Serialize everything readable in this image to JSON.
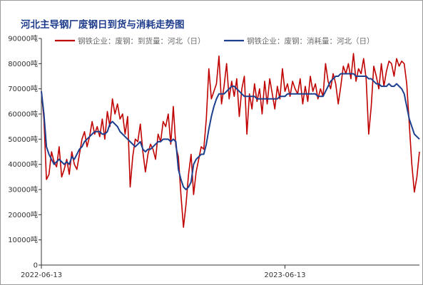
{
  "chart_data": {
    "type": "line",
    "title": "河北主导钢厂废钢日到货与消耗走势图",
    "ylim": [
      0,
      90000
    ],
    "y_unit": "吨",
    "y_ticks": [
      0,
      10000,
      20000,
      30000,
      40000,
      50000,
      60000,
      70000,
      80000,
      90000
    ],
    "y_tick_labels": [
      "0",
      "10000吨",
      "20000吨",
      "30000吨",
      "40000吨",
      "50000吨",
      "60000吨",
      "70000吨",
      "80000吨",
      "90000吨"
    ],
    "x_tick_labels": [
      "2022-06-13",
      "2023-06-13"
    ],
    "x_tick_index": [
      0,
      96
    ],
    "legend_position": "top",
    "grid": false,
    "series": [
      {
        "name": "钢铁企业：废钢：到货量：河北（日）",
        "color": "#c00000",
        "values": [
          69000,
          58000,
          34000,
          36000,
          45000,
          41000,
          39000,
          47000,
          35000,
          38000,
          42000,
          36000,
          45000,
          40000,
          38000,
          44000,
          50000,
          53000,
          47000,
          51000,
          57000,
          52000,
          55000,
          51000,
          58000,
          50000,
          61000,
          55000,
          66000,
          60000,
          64000,
          58000,
          60000,
          52000,
          59000,
          31000,
          43000,
          50000,
          49000,
          56000,
          45000,
          37000,
          44000,
          48000,
          46000,
          42000,
          52000,
          49000,
          57000,
          55000,
          60000,
          48000,
          63000,
          47000,
          43000,
          28000,
          15000,
          24000,
          36000,
          44000,
          28000,
          37000,
          42000,
          47000,
          46000,
          58000,
          78000,
          66000,
          69000,
          72000,
          83000,
          64000,
          71000,
          80000,
          66000,
          73000,
          67000,
          74000,
          59000,
          70000,
          75000,
          52000,
          68000,
          62000,
          72000,
          65000,
          70000,
          60000,
          73000,
          64000,
          74000,
          68000,
          62000,
          71000,
          66000,
          78000,
          69000,
          72000,
          67000,
          73000,
          70000,
          68000,
          74000,
          64000,
          71000,
          65000,
          75000,
          69000,
          72000,
          66000,
          70000,
          67000,
          80000,
          73000,
          70000,
          76000,
          72000,
          64000,
          71000,
          79000,
          76000,
          80000,
          74000,
          84000,
          73000,
          78000,
          76000,
          82000,
          74000,
          52000,
          63000,
          79000,
          75000,
          70000,
          80000,
          71000,
          77000,
          81000,
          80000,
          75000,
          82000,
          79000,
          81000,
          80000,
          72000,
          56000,
          40000,
          29000,
          35000,
          45000
        ]
      },
      {
        "name": "钢铁企业：废钢：消耗量：河北（日）",
        "color": "#1c3f8e",
        "values": [
          69000,
          60000,
          47000,
          44000,
          42000,
          40000,
          41000,
          42000,
          41000,
          40000,
          41000,
          40000,
          43000,
          42000,
          44000,
          46000,
          47000,
          49000,
          50000,
          51000,
          52000,
          53000,
          53000,
          53000,
          52000,
          52000,
          53000,
          56000,
          57000,
          56000,
          55000,
          53000,
          52000,
          51000,
          50000,
          49000,
          48000,
          47000,
          48000,
          49000,
          46000,
          45000,
          46000,
          46000,
          47000,
          48000,
          49000,
          49000,
          50000,
          50000,
          50000,
          49000,
          50000,
          49000,
          38000,
          34000,
          31000,
          30000,
          31000,
          33000,
          40000,
          42000,
          43000,
          44000,
          44000,
          48000,
          54000,
          59000,
          63000,
          66000,
          68000,
          68000,
          68000,
          69000,
          70000,
          71000,
          71000,
          70000,
          69000,
          68000,
          67000,
          67000,
          67000,
          67000,
          67000,
          66000,
          66000,
          66000,
          66000,
          66000,
          66000,
          66000,
          66000,
          66000,
          67000,
          67000,
          67000,
          68000,
          68000,
          68000,
          68000,
          68000,
          68000,
          68000,
          68000,
          68000,
          68000,
          68000,
          68000,
          67000,
          67000,
          67000,
          69000,
          71000,
          73000,
          74000,
          75000,
          75000,
          76000,
          76000,
          76000,
          76000,
          76000,
          76000,
          75000,
          75000,
          75000,
          75000,
          75000,
          74000,
          74000,
          73000,
          72000,
          72000,
          71000,
          71000,
          71000,
          72000,
          71000,
          71000,
          72000,
          71000,
          70000,
          68000,
          63000,
          58000,
          55000,
          52000,
          51000,
          50000
        ]
      }
    ]
  }
}
